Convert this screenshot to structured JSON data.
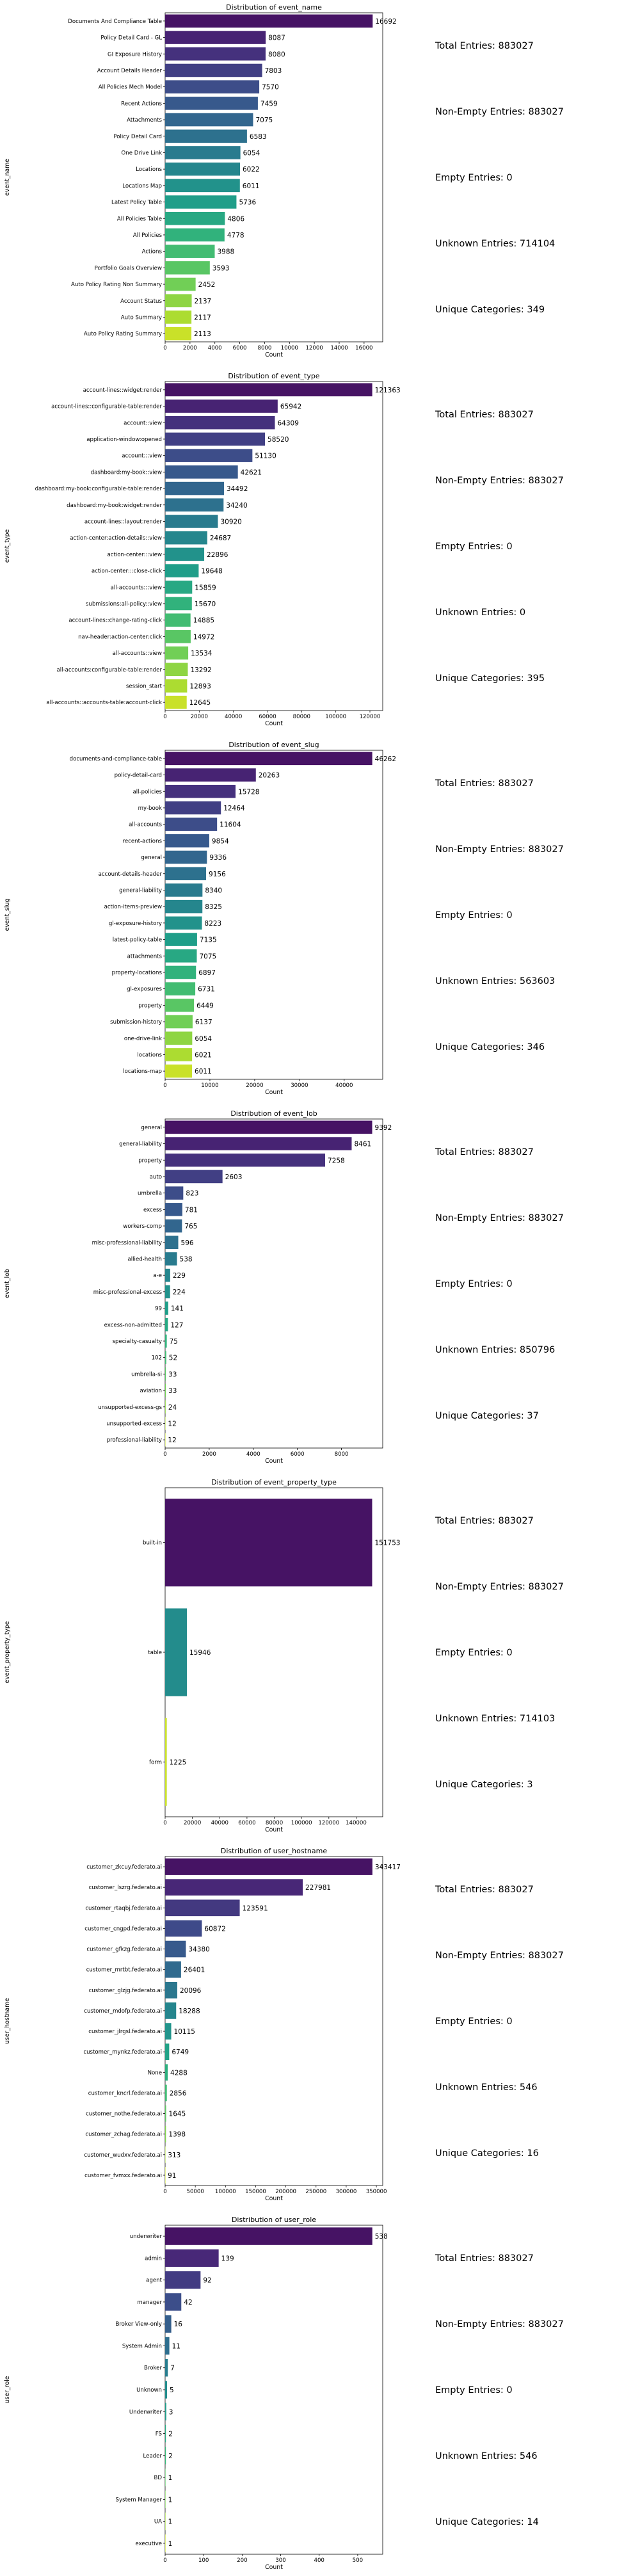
{
  "chart_data": [
    {
      "type": "bar",
      "orientation": "horizontal",
      "title": "Distribution of event_name",
      "xlabel": "Count",
      "ylabel": "event_name",
      "categories": [
        "Documents And Compliance Table",
        "Policy Detail Card - GL",
        "GI Exposure History",
        "Account Details Header",
        "All Policies Mech Model",
        "Recent Actions",
        "Attachments",
        "Policy Detail Card",
        "One Drive Link",
        "Locations",
        "Locations Map",
        "Latest Policy Table",
        "All Policies Table",
        "All Policies",
        "Actions",
        "Portfolio Goals Overview",
        "Auto Policy Rating Non Summary",
        "Account Status",
        "Auto Summary",
        "Auto Policy Rating Summary"
      ],
      "values": [
        16692,
        8087,
        8080,
        7803,
        7570,
        7459,
        7075,
        6583,
        6054,
        6022,
        6011,
        5736,
        4806,
        4778,
        3988,
        3593,
        2452,
        2137,
        2117,
        2113
      ],
      "xlim": [
        0,
        17500
      ],
      "xticks": [
        0,
        2000,
        4000,
        6000,
        8000,
        10000,
        12000,
        14000,
        16000
      ],
      "palette": "viridis",
      "stats": [
        "Total Entries: 883027",
        "Non-Empty Entries: 883027",
        "Empty Entries: 0",
        "Unknown Entries: 714104",
        "Unique Categories: 349"
      ]
    },
    {
      "type": "bar",
      "orientation": "horizontal",
      "title": "Distribution of event_type",
      "xlabel": "Count",
      "ylabel": "event_type",
      "categories": [
        "account-lines::widget:render",
        "account-lines::configurable-table:render",
        "account::view",
        "application-window:opened",
        "account:::view",
        "dashboard:my-book::view",
        "dashboard:my-book:configurable-table:render",
        "dashboard:my-book:widget:render",
        "account-lines::layout:render",
        "action-center:action-details::view",
        "action-center:::view",
        "action-center:::close-click",
        "all-accounts:::view",
        "submissions:all-policy::view",
        "account-lines::change-rating-click",
        "nav-header:action-center:click",
        "all-accounts::view",
        "all-accounts:configurable-table:render",
        "session_start",
        "all-accounts::accounts-table:account-click"
      ],
      "values": [
        121363,
        65942,
        64309,
        58520,
        51130,
        42621,
        34492,
        34240,
        30920,
        24687,
        22896,
        19648,
        15859,
        15670,
        14885,
        14972,
        13534,
        13292,
        12893,
        12645
      ],
      "xlim": [
        0,
        127500
      ],
      "xticks": [
        0,
        20000,
        40000,
        60000,
        80000,
        100000,
        120000
      ],
      "palette": "viridis",
      "stats": [
        "Total Entries: 883027",
        "Non-Empty Entries: 883027",
        "Empty Entries: 0",
        "Unknown Entries: 0",
        "Unique Categories: 395"
      ]
    },
    {
      "type": "bar",
      "orientation": "horizontal",
      "title": "Distribution of event_slug",
      "xlabel": "Count",
      "ylabel": "event_slug",
      "categories": [
        "documents-and-compliance-table",
        "policy-detail-card",
        "all-policies",
        "my-book",
        "all-accounts",
        "recent-actions",
        "general",
        "account-details-header",
        "general-liability",
        "action-items-preview",
        "gl-exposure-history",
        "latest-policy-table",
        "attachments",
        "property-locations",
        "gl-exposures",
        "property",
        "submission-history",
        "one-drive-link",
        "locations",
        "locations-map"
      ],
      "values": [
        46262,
        20263,
        15728,
        12464,
        11604,
        9854,
        9336,
        9156,
        8340,
        8325,
        8223,
        7135,
        7075,
        6897,
        6731,
        6449,
        6137,
        6054,
        6021,
        6011
      ],
      "xlim": [
        0,
        48600
      ],
      "xticks": [
        0,
        10000,
        20000,
        30000,
        40000
      ],
      "palette": "viridis",
      "stats": [
        "Total Entries: 883027",
        "Non-Empty Entries: 883027",
        "Empty Entries: 0",
        "Unknown Entries: 563603",
        "Unique Categories: 346"
      ]
    },
    {
      "type": "bar",
      "orientation": "horizontal",
      "title": "Distribution of event_lob",
      "xlabel": "Count",
      "ylabel": "event_lob",
      "categories": [
        "general",
        "general-liability",
        "property",
        "auto",
        "umbrella",
        "excess",
        "workers-comp",
        "misc-professional-liability",
        "allied-health",
        "a-e",
        "misc-professional-excess",
        "99",
        "excess-non-admitted",
        "specialty-casualty",
        "102",
        "umbrella-si",
        "aviation",
        "unsupported-excess-gs",
        "unsupported-excess",
        "professional-liability"
      ],
      "values": [
        9392,
        8461,
        7258,
        2603,
        823,
        781,
        765,
        596,
        538,
        229,
        224,
        141,
        127,
        75,
        52,
        33,
        33,
        24,
        12,
        12
      ],
      "xlim": [
        0,
        9870
      ],
      "xticks": [
        0,
        2000,
        4000,
        6000,
        8000
      ],
      "palette": "viridis",
      "stats": [
        "Total Entries: 883027",
        "Non-Empty Entries: 883027",
        "Empty Entries: 0",
        "Unknown Entries: 850796",
        "Unique Categories: 37"
      ]
    },
    {
      "type": "bar",
      "orientation": "horizontal",
      "title": "Distribution of event_property_type",
      "xlabel": "Count",
      "ylabel": "event_property_type",
      "categories": [
        "built-in",
        "table",
        "form"
      ],
      "values": [
        151753,
        15946,
        1225
      ],
      "xlim": [
        0,
        159500
      ],
      "xticks": [
        0,
        20000,
        40000,
        60000,
        80000,
        100000,
        120000,
        140000
      ],
      "palette": "viridis",
      "stats": [
        "Total Entries: 883027",
        "Non-Empty Entries: 883027",
        "Empty Entries: 0",
        "Unknown Entries: 714103",
        "Unique Categories: 3"
      ]
    },
    {
      "type": "bar",
      "orientation": "horizontal",
      "title": "Distribution of user_hostname",
      "xlabel": "Count",
      "ylabel": "user_hostname",
      "categories": [
        "customer_zkcuy.federato.ai",
        "customer_lszrg.federato.ai",
        "customer_rtaqbj.federato.ai",
        "customer_cngpd.federato.ai",
        "customer_gfkzg.federato.ai",
        "customer_mrtbt.federato.ai",
        "customer_glzjg.federato.ai",
        "customer_mdofp.federato.ai",
        "customer_jlrgsl.federato.ai",
        "customer_mynkz.federato.ai",
        "None",
        "customer_kncrl.federato.ai",
        "customer_nothe.federato.ai",
        "customer_zchag.federato.ai",
        "customer_wudxv.federato.ai",
        "customer_fvmxx.federato.ai"
      ],
      "values": [
        343417,
        227981,
        123591,
        60872,
        34380,
        26401,
        20096,
        18288,
        10115,
        6749,
        4288,
        2856,
        1645,
        1398,
        313,
        91
      ],
      "xlim": [
        0,
        360500
      ],
      "xticks": [
        0,
        50000,
        100000,
        150000,
        200000,
        250000,
        300000,
        350000
      ],
      "palette": "viridis",
      "stats": [
        "Total Entries: 883027",
        "Non-Empty Entries: 883027",
        "Empty Entries: 0",
        "Unknown Entries: 546",
        "Unique Categories: 16"
      ]
    },
    {
      "type": "bar",
      "orientation": "horizontal",
      "title": "Distribution of user_role",
      "xlabel": "Count",
      "ylabel": "user_role",
      "categories": [
        "underwriter",
        "admin",
        "agent",
        "manager",
        "Broker View-only",
        "System Admin",
        "Broker",
        "Unknown",
        "Underwriter",
        "FS",
        "Leader",
        "BD",
        "System Manager",
        "UA",
        "executive"
      ],
      "values": [
        538,
        139,
        92,
        42,
        16,
        11,
        7,
        5,
        3,
        2,
        2,
        1,
        1,
        1,
        1
      ],
      "xlim": [
        0,
        565
      ],
      "xticks": [
        0,
        100,
        200,
        300,
        400,
        500
      ],
      "palette": "viridis",
      "stats": [
        "Total Entries: 883027",
        "Non-Empty Entries: 883027",
        "Empty Entries: 0",
        "Unknown Entries: 546",
        "Unique Categories: 14"
      ]
    }
  ]
}
